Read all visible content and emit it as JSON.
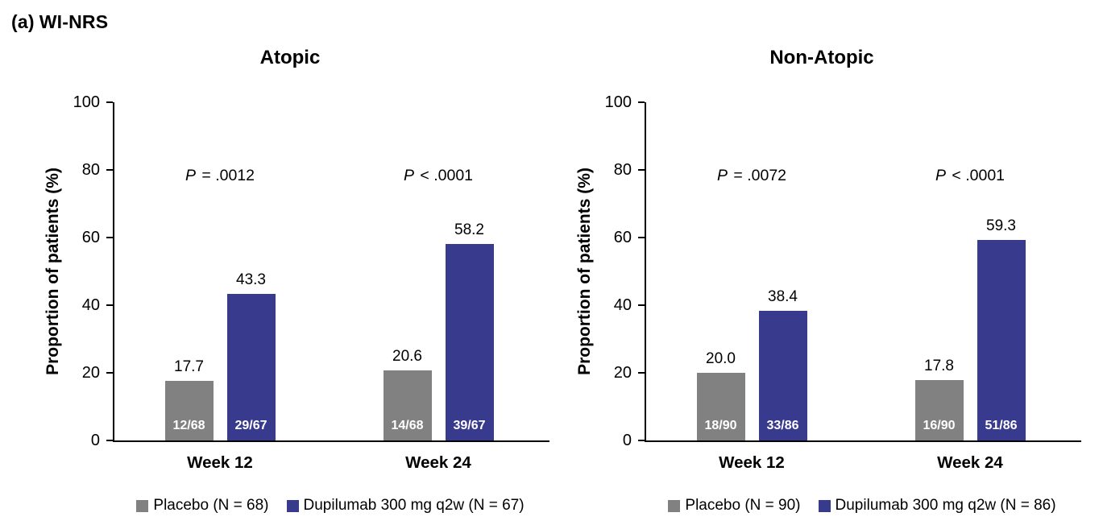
{
  "figure": {
    "panel_letter": "(a)",
    "panel_title": "WI-NRS"
  },
  "colors": {
    "placebo_gray": "#818181",
    "dupilumab_blue": "#383A8D",
    "axis_black": "#000000",
    "bar_label_white": "#ffffff"
  },
  "chart_data": [
    {
      "type": "bar",
      "title": "Atopic",
      "xlabel": "",
      "ylabel": "Proportion of patients (%)",
      "ylim": [
        0,
        100
      ],
      "yticks": [
        0,
        20,
        40,
        60,
        80,
        100
      ],
      "grid": false,
      "legend_position": "bottom",
      "categories": [
        "Week 12",
        "Week 24"
      ],
      "series": [
        {
          "name": "Placebo (N = 68)",
          "color": "#818181",
          "values": [
            17.7,
            20.6
          ],
          "value_labels": [
            "17.7",
            "20.6"
          ],
          "bar_fractions": [
            "12/68",
            "14/68"
          ]
        },
        {
          "name": "Dupilumab 300 mg q2w (N = 67)",
          "color": "#383A8D",
          "values": [
            43.3,
            58.2
          ],
          "value_labels": [
            "43.3",
            "58.2"
          ],
          "bar_fractions": [
            "29/67",
            "39/67"
          ]
        }
      ],
      "annotations": [
        {
          "category": "Week 12",
          "text": "P = .0012",
          "italic_prefix": "P"
        },
        {
          "category": "Week 24",
          "text": "P < .0001",
          "italic_prefix": "P"
        }
      ]
    },
    {
      "type": "bar",
      "title": "Non-Atopic",
      "xlabel": "",
      "ylabel": "Proportion of patients (%)",
      "ylim": [
        0,
        100
      ],
      "yticks": [
        0,
        20,
        40,
        60,
        80,
        100
      ],
      "grid": false,
      "legend_position": "bottom",
      "categories": [
        "Week 12",
        "Week 24"
      ],
      "series": [
        {
          "name": "Placebo (N = 90)",
          "color": "#818181",
          "values": [
            20.0,
            17.8
          ],
          "value_labels": [
            "20.0",
            "17.8"
          ],
          "bar_fractions": [
            "18/90",
            "16/90"
          ]
        },
        {
          "name": "Dupilumab 300 mg q2w (N = 86)",
          "color": "#383A8D",
          "values": [
            38.4,
            59.3
          ],
          "value_labels": [
            "38.4",
            "59.3"
          ],
          "bar_fractions": [
            "33/86",
            "51/86"
          ]
        }
      ],
      "annotations": [
        {
          "category": "Week 12",
          "text": "P = .0072",
          "italic_prefix": "P"
        },
        {
          "category": "Week 24",
          "text": "P < .0001",
          "italic_prefix": "P"
        }
      ]
    }
  ]
}
